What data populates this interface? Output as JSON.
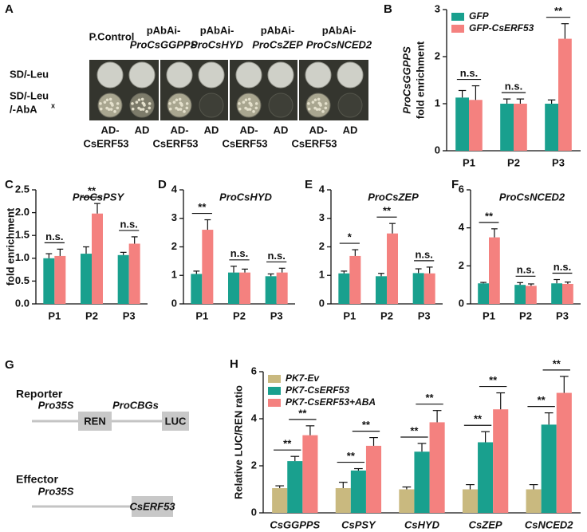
{
  "yeast_assay": {
    "panel": "A",
    "columns": [
      [
        "P.Control"
      ],
      [
        "pAbAi-",
        "ProCsGGPPS"
      ],
      [
        "pAbAi-",
        "ProCsHYD"
      ],
      [
        "pAbAi-",
        "ProCsZEP"
      ],
      [
        "pAbAi-",
        "ProCsNCED2"
      ]
    ],
    "rows": [
      [
        "SD/-Leu"
      ],
      [
        "SD/-Leu",
        "/-AbA"
      ]
    ],
    "row_superscript": "x",
    "effectors": [
      [
        "AD-",
        "CsERF53"
      ],
      [
        "AD"
      ],
      [
        "AD-",
        "CsERF53"
      ],
      [
        "AD"
      ],
      [
        "AD-",
        "CsERF53"
      ],
      [
        "AD"
      ],
      [
        "AD-",
        "CsERF53"
      ],
      [
        "AD"
      ]
    ]
  },
  "construct_diagram": {
    "panel": "G",
    "reporter": {
      "title": "Reporter",
      "promoter1": "Pro35S",
      "box1": "REN",
      "promoter2": "ProCBGs",
      "box2": "LUC"
    },
    "effector": {
      "title": "Effector",
      "promoter": "Pro35S",
      "box": "CsERF53"
    }
  },
  "chart_data": [
    {
      "type": "bar",
      "panel": "B",
      "ylabel_gene": "ProCsGGPPS",
      "ylabel": "fold enrichment",
      "categories": [
        "P1",
        "P2",
        "P3"
      ],
      "legend": "upper left",
      "series": [
        {
          "name": "GFP",
          "color": "#19a08e",
          "values": [
            1.13,
            1.0,
            1.0
          ],
          "errors": [
            0.15,
            0.1,
            0.08
          ]
        },
        {
          "name": "GFP-CsERF53",
          "color": "#f4817f",
          "values": [
            1.08,
            1.0,
            2.38
          ],
          "errors": [
            0.3,
            0.1,
            0.32
          ]
        }
      ],
      "significance": [
        "n.s.",
        "n.s.",
        "**"
      ],
      "ylim": [
        0,
        3
      ],
      "yticks": [
        0,
        1,
        2,
        3
      ]
    },
    {
      "type": "bar",
      "panel": "C",
      "title": "ProCsPSY",
      "ylabel": "fold enrichment",
      "categories": [
        "P1",
        "P2",
        "P3"
      ],
      "series": [
        {
          "color": "#19a08e",
          "values": [
            1.0,
            1.1,
            1.07
          ],
          "errors": [
            0.1,
            0.15,
            0.06
          ]
        },
        {
          "color": "#f4817f",
          "values": [
            1.05,
            1.98,
            1.32
          ],
          "errors": [
            0.15,
            0.22,
            0.15
          ]
        }
      ],
      "significance": [
        "n.s.",
        "**",
        "n.s."
      ],
      "ylim": [
        0,
        2.5
      ],
      "yticks": [
        {
          "value": 0,
          "label": "0.0"
        },
        0.5,
        {
          "value": 1,
          "label": "1.0"
        },
        1.5,
        {
          "value": 2,
          "label": "2.0"
        },
        2.5
      ]
    },
    {
      "type": "bar",
      "panel": "D",
      "title": "ProCsHYD",
      "categories": [
        "P1",
        "P2",
        "P3"
      ],
      "series": [
        {
          "color": "#19a08e",
          "values": [
            1.05,
            1.1,
            0.97
          ],
          "errors": [
            0.1,
            0.22,
            0.08
          ]
        },
        {
          "color": "#f4817f",
          "values": [
            2.6,
            1.1,
            1.1
          ],
          "errors": [
            0.35,
            0.12,
            0.15
          ]
        }
      ],
      "significance": [
        "**",
        "n.s.",
        "n.s."
      ],
      "ylim": [
        0,
        4
      ],
      "yticks": [
        0,
        1,
        2,
        3,
        4
      ]
    },
    {
      "type": "bar",
      "panel": "E",
      "title": "ProCsZEP",
      "categories": [
        "P1",
        "P2",
        "P3"
      ],
      "series": [
        {
          "color": "#19a08e",
          "values": [
            1.07,
            0.97,
            1.08
          ],
          "errors": [
            0.08,
            0.1,
            0.15
          ]
        },
        {
          "color": "#f4817f",
          "values": [
            1.68,
            2.47,
            1.07
          ],
          "errors": [
            0.22,
            0.35,
            0.22
          ]
        }
      ],
      "significance": [
        "*",
        "**",
        "n.s."
      ],
      "ylim": [
        0,
        4
      ],
      "yticks": [
        0,
        1,
        2,
        3,
        4
      ]
    },
    {
      "type": "bar",
      "panel": "F",
      "title": "ProCsNCED2",
      "categories": [
        "P1",
        "P2",
        "P3"
      ],
      "series": [
        {
          "color": "#19a08e",
          "values": [
            1.08,
            1.0,
            1.08
          ],
          "errors": [
            0.05,
            0.12,
            0.2
          ]
        },
        {
          "color": "#f4817f",
          "values": [
            3.5,
            0.95,
            1.05
          ],
          "errors": [
            0.45,
            0.1,
            0.1
          ]
        }
      ],
      "significance": [
        "**",
        "n.s.",
        "n.s."
      ],
      "ylim": [
        0,
        6
      ],
      "yticks": [
        0,
        2,
        4,
        6
      ]
    },
    {
      "type": "bar",
      "panel": "H",
      "ylabel": "Relative LUC/REN ratio",
      "categories": [
        "CsGGPPS",
        "CsPSY",
        "CsHYD",
        "CsZEP",
        "CsNCED2"
      ],
      "legend": "upper left",
      "series": [
        {
          "name": "PK7-Ev",
          "color": "#c9b97f",
          "values": [
            1.05,
            1.05,
            1.0,
            1.0,
            1.0
          ],
          "errors": [
            0.1,
            0.25,
            0.1,
            0.2,
            0.2
          ]
        },
        {
          "name": "PK7-CsERF53",
          "color": "#19a08e",
          "values": [
            2.2,
            1.8,
            2.6,
            3.0,
            3.75
          ],
          "errors": [
            0.2,
            0.08,
            0.35,
            0.45,
            0.5
          ]
        },
        {
          "name": "PK7-CsERF53+ABA",
          "color": "#f4817f",
          "values": [
            3.3,
            2.85,
            3.85,
            4.4,
            5.1
          ],
          "errors": [
            0.4,
            0.35,
            0.5,
            0.7,
            0.7
          ]
        }
      ],
      "significance": [
        [
          "**",
          "**"
        ],
        [
          "**",
          "**"
        ],
        [
          "**",
          "**"
        ],
        [
          "**",
          "**"
        ],
        [
          "**",
          "**"
        ]
      ],
      "ylim": [
        0,
        6
      ],
      "yticks": [
        0,
        2,
        4,
        6
      ]
    }
  ]
}
